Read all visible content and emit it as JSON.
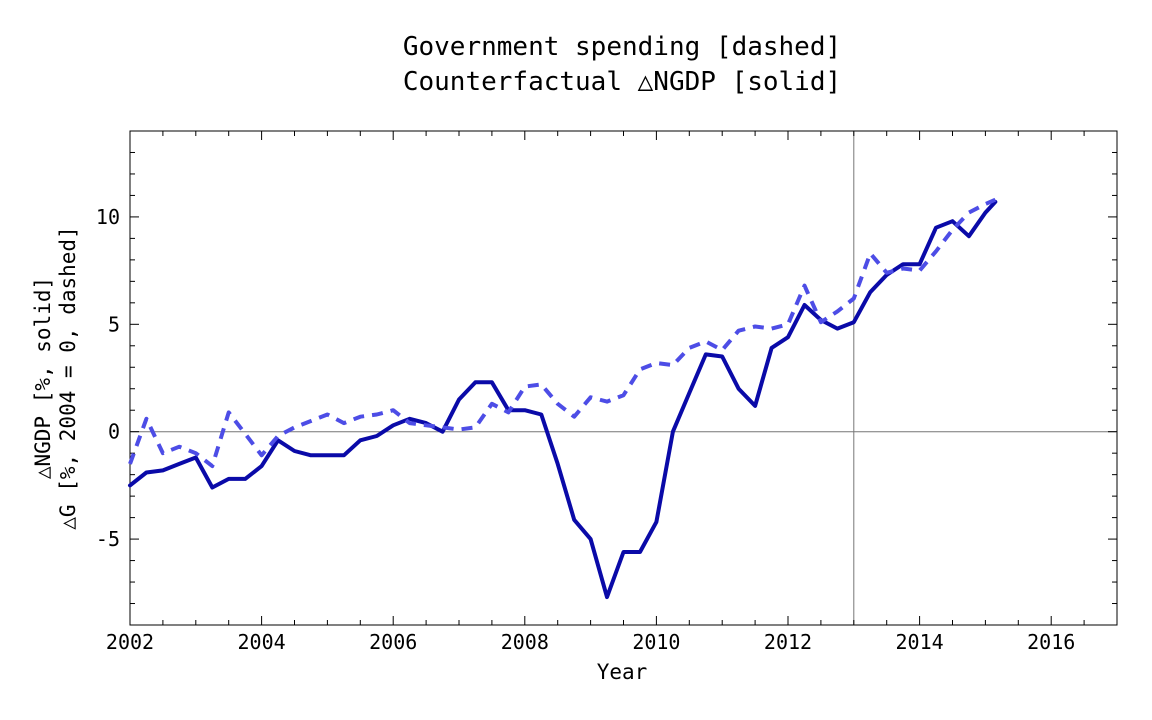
{
  "chart_data": {
    "type": "line",
    "title_lines": [
      "Government spending [dashed]",
      "Counterfactual △NGDP [solid]"
    ],
    "xlabel": "Year",
    "ylabel_lines": [
      "△NGDP [%, solid]",
      "△G [%, 2004 = 0, dashed]"
    ],
    "xlim": [
      2002,
      2017
    ],
    "ylim": [
      -9,
      14
    ],
    "x_ticks": [
      2002,
      2004,
      2006,
      2008,
      2010,
      2012,
      2014,
      2016
    ],
    "y_ticks": [
      -5,
      0,
      5,
      10
    ],
    "reference_lines": {
      "x": 2013,
      "y": 0
    },
    "grid": false,
    "series": [
      {
        "style": "solid",
        "color": "#0a0aa8",
        "x": [
          2002.0,
          2002.25,
          2002.5,
          2002.75,
          2003.0,
          2003.25,
          2003.5,
          2003.75,
          2004.0,
          2004.25,
          2004.5,
          2004.75,
          2005.0,
          2005.25,
          2005.5,
          2005.75,
          2006.0,
          2006.25,
          2006.5,
          2006.75,
          2007.0,
          2007.25,
          2007.5,
          2007.75,
          2008.0,
          2008.25,
          2008.5,
          2008.75,
          2009.0,
          2009.25,
          2009.5,
          2009.75,
          2010.0,
          2010.25,
          2010.5,
          2010.75,
          2011.0,
          2011.25,
          2011.5,
          2011.75,
          2012.0,
          2012.25,
          2012.5,
          2012.75,
          2013.0,
          2013.25,
          2013.5,
          2013.75,
          2014.0,
          2014.25,
          2014.5,
          2014.75,
          2015.0,
          2015.15
        ],
        "values": [
          -2.5,
          -1.9,
          -1.8,
          -1.5,
          -1.2,
          -2.6,
          -2.2,
          -2.2,
          -1.6,
          -0.4,
          -0.9,
          -1.1,
          -1.1,
          -1.1,
          -0.4,
          -0.2,
          0.3,
          0.6,
          0.4,
          0.0,
          1.5,
          2.3,
          2.3,
          1.0,
          1.0,
          0.8,
          -1.5,
          -4.1,
          -5.0,
          -7.7,
          -5.6,
          -5.6,
          -4.2,
          0.0,
          1.8,
          3.6,
          3.5,
          2.0,
          1.2,
          3.9,
          4.4,
          5.9,
          5.2,
          4.8,
          5.1,
          6.5,
          7.3,
          7.8,
          7.8,
          9.5,
          9.8,
          9.1,
          10.2,
          10.7
        ]
      },
      {
        "style": "dashed",
        "color": "#4d4de6",
        "x": [
          2002.0,
          2002.25,
          2002.5,
          2002.75,
          2003.0,
          2003.25,
          2003.5,
          2003.75,
          2004.0,
          2004.25,
          2004.5,
          2004.75,
          2005.0,
          2005.25,
          2005.5,
          2005.75,
          2006.0,
          2006.25,
          2006.5,
          2006.75,
          2007.0,
          2007.25,
          2007.5,
          2007.75,
          2008.0,
          2008.25,
          2008.5,
          2008.75,
          2009.0,
          2009.25,
          2009.5,
          2009.75,
          2010.0,
          2010.25,
          2010.5,
          2010.75,
          2011.0,
          2011.25,
          2011.5,
          2011.75,
          2012.0,
          2012.25,
          2012.5,
          2012.75,
          2013.0,
          2013.25,
          2013.5,
          2013.75,
          2014.0,
          2014.25,
          2014.5,
          2014.75,
          2015.0,
          2015.15
        ],
        "values": [
          -1.5,
          0.6,
          -1.0,
          -0.7,
          -1.0,
          -1.6,
          0.9,
          -0.1,
          -1.1,
          -0.2,
          0.2,
          0.5,
          0.8,
          0.4,
          0.7,
          0.8,
          1.0,
          0.4,
          0.3,
          0.2,
          0.1,
          0.2,
          1.3,
          0.9,
          2.1,
          2.2,
          1.3,
          0.7,
          1.6,
          1.4,
          1.7,
          2.9,
          3.2,
          3.1,
          3.9,
          4.2,
          3.8,
          4.7,
          4.9,
          4.8,
          5.0,
          6.8,
          5.1,
          5.6,
          6.2,
          8.3,
          7.4,
          7.6,
          7.5,
          8.4,
          9.4,
          10.2,
          10.6,
          10.8
        ]
      }
    ]
  }
}
